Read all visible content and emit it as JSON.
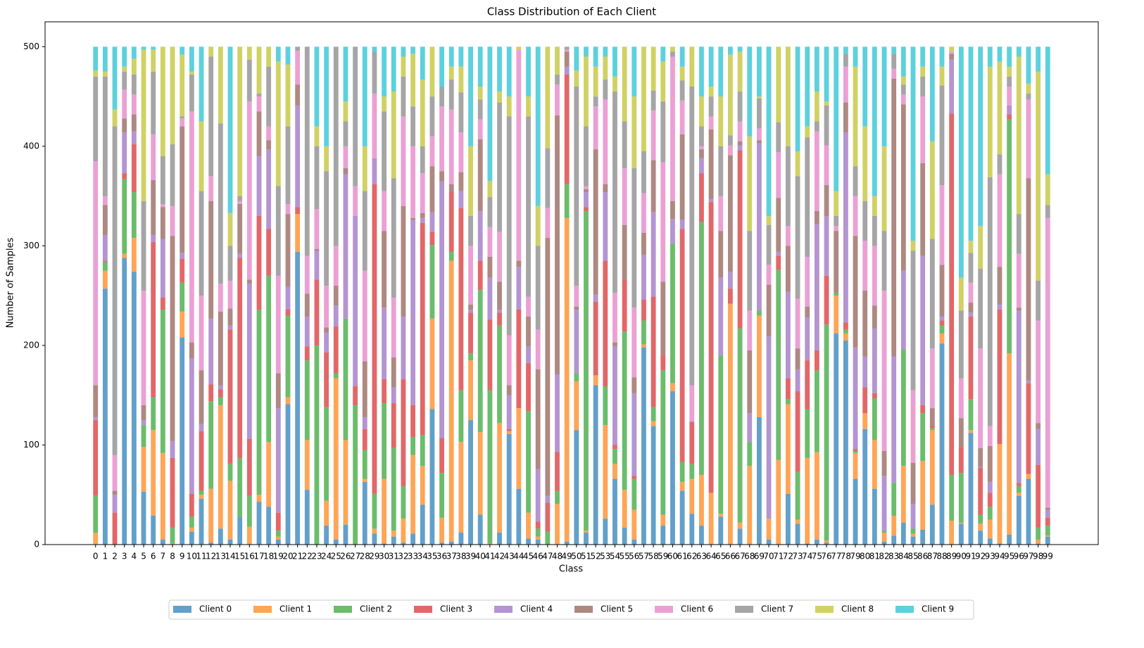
{
  "chart_data": {
    "type": "bar",
    "stacked": true,
    "title": "Class Distribution of Each Client",
    "x_label": "Class",
    "y_label": "Number of Samples",
    "categories": [
      "0",
      "1",
      "2",
      "3",
      "4",
      "5",
      "6",
      "7",
      "8",
      "9",
      "10",
      "11",
      "12",
      "13",
      "14",
      "15",
      "16",
      "17",
      "18",
      "19",
      "20",
      "21",
      "22",
      "23",
      "24",
      "25",
      "26",
      "27",
      "28",
      "29",
      "30",
      "31",
      "32",
      "33",
      "34",
      "35",
      "36",
      "37",
      "38",
      "39",
      "40",
      "41",
      "42",
      "43",
      "44",
      "45",
      "46",
      "47",
      "48",
      "49",
      "50",
      "51",
      "52",
      "53",
      "54",
      "55",
      "56",
      "57",
      "58",
      "59",
      "60",
      "61",
      "62",
      "63",
      "64",
      "65",
      "66",
      "67",
      "68",
      "69",
      "70",
      "71",
      "72",
      "73",
      "74",
      "75",
      "76",
      "77",
      "78",
      "79",
      "80",
      "81",
      "82",
      "83",
      "84",
      "85",
      "86",
      "87",
      "88",
      "89",
      "90",
      "91",
      "92",
      "93",
      "94",
      "95",
      "96",
      "97",
      "98",
      "99"
    ],
    "ylim": [
      0,
      525
    ],
    "yticks": [
      0,
      100,
      200,
      300,
      400,
      500
    ],
    "grid": false,
    "legend": "bottom",
    "alpha": 0.7,
    "series": [
      {
        "name": "Client 0",
        "color": "#1f77b4",
        "values": [
          0,
          257,
          0,
          288,
          274,
          53,
          29,
          5,
          0,
          208,
          13,
          46,
          2,
          16,
          5,
          28,
          0,
          43,
          38,
          5,
          141,
          294,
          55,
          0,
          19,
          5,
          20,
          0,
          63,
          11,
          1,
          8,
          2,
          11,
          40,
          136,
          2,
          3,
          12,
          125,
          30,
          0,
          12,
          111,
          56,
          6,
          5,
          0,
          0,
          3,
          115,
          12,
          160,
          26,
          66,
          17,
          5,
          198,
          119,
          19,
          154,
          54,
          31,
          19,
          0,
          28,
          0,
          16,
          0,
          128,
          5,
          0,
          51,
          21,
          1,
          5,
          2,
          212,
          205,
          66,
          116,
          56,
          3,
          9,
          22,
          8,
          15,
          40,
          202,
          0,
          21,
          112,
          14,
          6,
          1,
          10,
          49,
          66,
          1,
          8
        ]
      },
      {
        "name": "Client 1",
        "color": "#ff7f0e",
        "values": [
          12,
          18,
          0,
          4,
          34,
          45,
          86,
          87,
          1,
          26,
          4,
          4,
          54,
          124,
          59,
          0,
          18,
          7,
          65,
          3,
          7,
          38,
          50,
          0,
          25,
          162,
          85,
          0,
          3,
          5,
          65,
          6,
          24,
          79,
          39,
          91,
          25,
          282,
          91,
          60,
          83,
          1,
          110,
          3,
          81,
          26,
          3,
          0,
          41,
          325,
          49,
          2,
          10,
          94,
          15,
          38,
          30,
          3,
          5,
          11,
          8,
          9,
          35,
          51,
          52,
          3,
          242,
          6,
          79,
          102,
          21,
          85,
          90,
          4,
          86,
          88,
          2,
          38,
          7,
          26,
          16,
          49,
          9,
          20,
          57,
          3,
          69,
          75,
          10,
          24,
          1,
          3,
          7,
          19,
          100,
          182,
          3,
          5,
          4,
          1
        ]
      },
      {
        "name": "Client 2",
        "color": "#2ca02c",
        "values": [
          37,
          9,
          0,
          75,
          46,
          22,
          33,
          144,
          16,
          29,
          11,
          4,
          88,
          8,
          17,
          59,
          31,
          186,
          167,
          6,
          82,
          0,
          80,
          200,
          94,
          5,
          122,
          140,
          29,
          35,
          76,
          83,
          33,
          18,
          31,
          74,
          45,
          9,
          52,
          7,
          143,
          154,
          98,
          0,
          0,
          102,
          8,
          13,
          13,
          34,
          8,
          321,
          0,
          39,
          15,
          159,
          31,
          24,
          14,
          145,
          140,
          20,
          15,
          254,
          0,
          159,
          0,
          195,
          24,
          5,
          0,
          191,
          5,
          48,
          49,
          82,
          217,
          3,
          4,
          2,
          0,
          42,
          2,
          33,
          117,
          5,
          48,
          2,
          8,
          46,
          50,
          31,
          9,
          13,
          0,
          235,
          7,
          0,
          12,
          10
        ]
      },
      {
        "name": "Client 3",
        "color": "#d62728",
        "values": [
          76,
          1,
          32,
          6,
          48,
          0,
          156,
          12,
          70,
          24,
          23,
          60,
          17,
          8,
          135,
          201,
          57,
          94,
          47,
          18,
          6,
          7,
          14,
          66,
          55,
          47,
          0,
          19,
          21,
          311,
          24,
          45,
          107,
          32,
          213,
          13,
          35,
          60,
          183,
          41,
          29,
          71,
          13,
          2,
          99,
          48,
          7,
          29,
          39,
          110,
          0,
          4,
          74,
          126,
          4,
          52,
          3,
          21,
          111,
          15,
          0,
          234,
          42,
          49,
          292,
          0,
          15,
          179,
          0,
          0,
          0,
          14,
          21,
          81,
          49,
          20,
          49,
          0,
          7,
          2,
          26,
          5,
          0,
          0,
          0,
          0,
          8,
          3,
          5,
          363,
          26,
          83,
          47,
          14,
          135,
          5,
          3,
          91,
          63,
          8
        ]
      },
      {
        "name": "Client 4",
        "color": "#9467bd",
        "values": [
          3,
          26,
          18,
          41,
          13,
          5,
          7,
          59,
          17,
          6,
          136,
          7,
          66,
          4,
          4,
          4,
          156,
          60,
          80,
          105,
          23,
          102,
          30,
          29,
          20,
          21,
          145,
          171,
          12,
          26,
          72,
          16,
          63,
          186,
          5,
          20,
          258,
          0,
          17,
          3,
          50,
          42,
          3,
          34,
          43,
          17,
          53,
          7,
          78,
          8,
          64,
          15,
          7,
          69,
          99,
          0,
          83,
          45,
          85,
          0,
          25,
          9,
          1,
          15,
          3,
          78,
          17,
          5,
          29,
          168,
          183,
          4,
          87,
          22,
          43,
          127,
          60,
          0,
          191,
          102,
          31,
          65,
          55,
          127,
          79,
          25,
          150,
          0,
          4,
          54,
          0,
          4,
          1,
          11,
          5,
          9,
          173,
          3,
          36,
          8
        ]
      },
      {
        "name": "Client 5",
        "color": "#8c564b",
        "values": [
          32,
          30,
          4,
          14,
          17,
          15,
          55,
          32,
          206,
          127,
          16,
          54,
          118,
          74,
          17,
          50,
          4,
          45,
          9,
          35,
          73,
          21,
          23,
          2,
          5,
          20,
          6,
          0,
          56,
          0,
          77,
          30,
          111,
          2,
          5,
          46,
          10,
          8,
          19,
          5,
          72,
          21,
          28,
          10,
          6,
          30,
          100,
          259,
          260,
          15,
          3,
          3,
          146,
          8,
          4,
          55,
          16,
          22,
          52,
          74,
          18,
          86,
          0,
          9,
          70,
          47,
          117,
          4,
          63,
          3,
          52,
          54,
          46,
          21,
          11,
          13,
          31,
          62,
          30,
          112,
          66,
          23,
          25,
          279,
          167,
          41,
          93,
          17,
          52,
          6,
          29,
          10,
          19,
          36,
          38,
          0,
          3,
          203,
          6,
          2
        ]
      },
      {
        "name": "Client 6",
        "color": "#e377c2",
        "values": [
          225,
          9,
          36,
          29,
          20,
          115,
          46,
          3,
          30,
          8,
          232,
          75,
          25,
          28,
          28,
          3,
          179,
          15,
          14,
          98,
          10,
          34,
          38,
          40,
          42,
          40,
          22,
          30,
          91,
          65,
          40,
          60,
          90,
          72,
          40,
          30,
          65,
          75,
          40,
          59,
          20,
          30,
          50,
          50,
          212,
          20,
          40,
          30,
          31,
          2,
          21,
          3,
          43,
          85,
          50,
          57,
          70,
          40,
          50,
          120,
          145,
          34,
          36,
          3,
          13,
          35,
          10,
          20,
          40,
          12,
          20,
          46,
          20,
          50,
          50,
          80,
          40,
          5,
          36,
          40,
          50,
          60,
          161,
          10,
          10,
          73,
          67,
          60,
          80,
          2,
          40,
          20,
          100,
          20,
          93,
          19,
          54,
          79,
          103,
          291
        ]
      },
      {
        "name": "Client 7",
        "color": "#7f7f7f",
        "values": [
          85,
          120,
          330,
          18,
          20,
          90,
          63,
          48,
          62,
          2,
          37,
          105,
          120,
          161,
          35,
          5,
          42,
          3,
          60,
          90,
          78,
          4,
          210,
          63,
          115,
          200,
          25,
          140,
          80,
          42,
          80,
          120,
          40,
          40,
          27,
          40,
          20,
          30,
          40,
          30,
          20,
          30,
          130,
          220,
          0,
          181,
          84,
          60,
          10,
          3,
          200,
          60,
          10,
          20,
          202,
          47,
          140,
          42,
          20,
          61,
          5,
          20,
          300,
          20,
          20,
          50,
          10,
          30,
          80,
          30,
          40,
          30,
          80,
          123,
          120,
          10,
          40,
          10,
          13,
          30,
          40,
          30,
          60,
          15,
          10,
          140,
          20,
          110,
          100,
          0,
          68,
          30,
          80,
          250,
          20,
          10,
          40,
          6,
          40,
          13
        ]
      },
      {
        "name": "Client 8",
        "color": "#bcbd22",
        "values": [
          6,
          5,
          17,
          5,
          16,
          152,
          22,
          110,
          98,
          62,
          3,
          70,
          10,
          77,
          33,
          150,
          13,
          47,
          20,
          125,
          62,
          0,
          0,
          20,
          25,
          0,
          20,
          0,
          45,
          0,
          15,
          87,
          20,
          53,
          67,
          50,
          0,
          13,
          26,
          70,
          13,
          16,
          11,
          20,
          3,
          20,
          40,
          102,
          28,
          0,
          16,
          70,
          30,
          23,
          15,
          75,
          72,
          105,
          44,
          40,
          5,
          14,
          40,
          30,
          10,
          50,
          81,
          40,
          95,
          2,
          9,
          76,
          100,
          25,
          11,
          30,
          4,
          25,
          0,
          100,
          75,
          20,
          85,
          0,
          8,
          10,
          10,
          98,
          19,
          5,
          33,
          12,
          43,
          111,
          93,
          10,
          158,
          10,
          210,
          31
        ]
      },
      {
        "name": "Client 9",
        "color": "#17becf",
        "values": [
          24,
          25,
          63,
          20,
          12,
          3,
          3,
          0,
          0,
          8,
          25,
          75,
          0,
          0,
          167,
          0,
          0,
          0,
          0,
          15,
          18,
          0,
          0,
          80,
          100,
          0,
          55,
          0,
          100,
          5,
          50,
          45,
          10,
          7,
          33,
          0,
          40,
          20,
          20,
          100,
          40,
          135,
          45,
          50,
          0,
          50,
          160,
          0,
          0,
          0,
          24,
          10,
          20,
          10,
          30,
          0,
          50,
          0,
          0,
          15,
          0,
          20,
          0,
          50,
          40,
          50,
          8,
          5,
          90,
          50,
          170,
          0,
          0,
          105,
          80,
          45,
          55,
          145,
          7,
          20,
          80,
          150,
          100,
          7,
          30,
          195,
          20,
          95,
          20,
          0,
          232,
          195,
          180,
          20,
          15,
          20,
          10,
          37,
          25,
          128
        ]
      }
    ]
  }
}
